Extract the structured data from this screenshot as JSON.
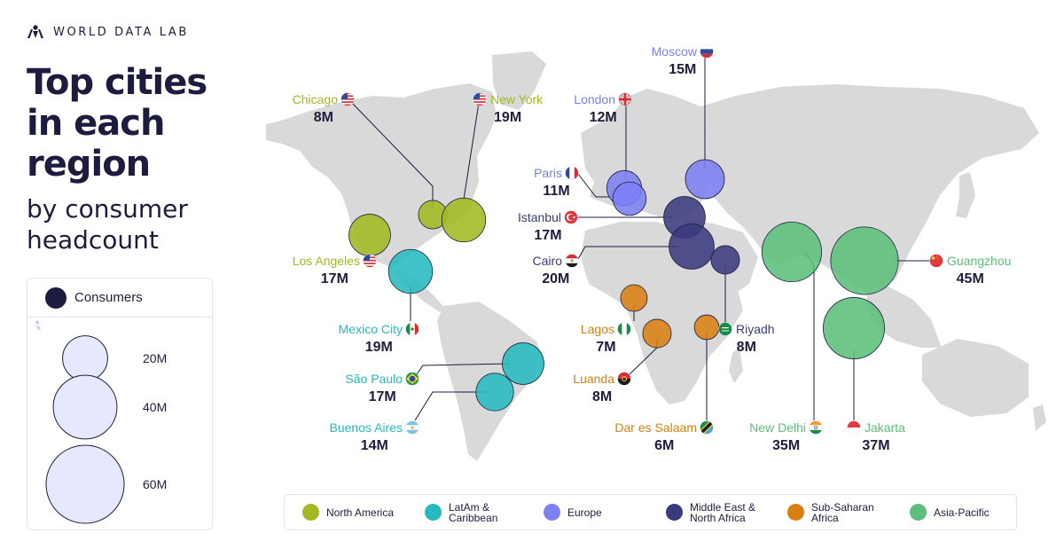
{
  "brand": {
    "name": "WORLD DATA LAB",
    "logo_icon": "people-logo-icon"
  },
  "title": {
    "line1": "Top cities",
    "line2": "in each",
    "line3": "region"
  },
  "subtitle": {
    "line1": "by consumer",
    "line2": "headcount"
  },
  "size_legend": {
    "title": "Consumers",
    "icon": "people-icon",
    "bubbles": [
      {
        "value": 20,
        "label": "20M"
      },
      {
        "value": 40,
        "label": "40M"
      },
      {
        "value": 60,
        "label": "60M"
      }
    ]
  },
  "regions": [
    {
      "id": "na",
      "name": "North America",
      "color": "#a3b821"
    },
    {
      "id": "latam",
      "name": "LatAm &\nCaribbean",
      "color": "#27b9be"
    },
    {
      "id": "eu",
      "name": "Europe",
      "color": "#7b80f2"
    },
    {
      "id": "mena",
      "name": "Middle East &\nNorth Africa",
      "color": "#3a3b7e"
    },
    {
      "id": "ssa",
      "name": "Sub-Saharan\nAfrica",
      "color": "#d97f12"
    },
    {
      "id": "apac",
      "name": "Asia-Pacific",
      "color": "#5cbf7a"
    }
  ],
  "cities": [
    {
      "name": "Chicago",
      "value": "8M",
      "consumers_m": 8,
      "region": "na",
      "flag": "us-flag-icon"
    },
    {
      "name": "New York",
      "value": "19M",
      "consumers_m": 19,
      "region": "na",
      "flag": "us-flag-icon"
    },
    {
      "name": "Los Angeles",
      "value": "17M",
      "consumers_m": 17,
      "region": "na",
      "flag": "us-flag-icon"
    },
    {
      "name": "Mexico City",
      "value": "19M",
      "consumers_m": 19,
      "region": "latam",
      "flag": "mexico-flag-icon"
    },
    {
      "name": "São Paulo",
      "value": "17M",
      "consumers_m": 17,
      "region": "latam",
      "flag": "brazil-flag-icon"
    },
    {
      "name": "Buenos Aires",
      "value": "14M",
      "consumers_m": 14,
      "region": "latam",
      "flag": "argentina-flag-icon"
    },
    {
      "name": "London",
      "value": "12M",
      "consumers_m": 12,
      "region": "eu",
      "flag": "uk-flag-icon"
    },
    {
      "name": "Paris",
      "value": "11M",
      "consumers_m": 11,
      "region": "eu",
      "flag": "france-flag-icon"
    },
    {
      "name": "Moscow",
      "value": "15M",
      "consumers_m": 15,
      "region": "eu",
      "flag": "russia-flag-icon"
    },
    {
      "name": "Istanbul",
      "value": "17M",
      "consumers_m": 17,
      "region": "mena",
      "flag": "turkey-flag-icon"
    },
    {
      "name": "Cairo",
      "value": "20M",
      "consumers_m": 20,
      "region": "mena",
      "flag": "egypt-flag-icon"
    },
    {
      "name": "Riyadh",
      "value": "8M",
      "consumers_m": 8,
      "region": "mena",
      "flag": "saudi-flag-icon"
    },
    {
      "name": "Lagos",
      "value": "7M",
      "consumers_m": 7,
      "region": "ssa",
      "flag": "nigeria-flag-icon"
    },
    {
      "name": "Luanda",
      "value": "8M",
      "consumers_m": 8,
      "region": "ssa",
      "flag": "angola-flag-icon"
    },
    {
      "name": "Dar es Salaam",
      "value": "6M",
      "consumers_m": 6,
      "region": "ssa",
      "flag": "tanzania-flag-icon"
    },
    {
      "name": "New Delhi",
      "value": "35M",
      "consumers_m": 35,
      "region": "apac",
      "flag": "india-flag-icon"
    },
    {
      "name": "Jakarta",
      "value": "37M",
      "consumers_m": 37,
      "region": "apac",
      "flag": "indonesia-flag-icon"
    },
    {
      "name": "Guangzhou",
      "value": "45M",
      "consumers_m": 45,
      "region": "apac",
      "flag": "china-flag-icon"
    }
  ]
}
